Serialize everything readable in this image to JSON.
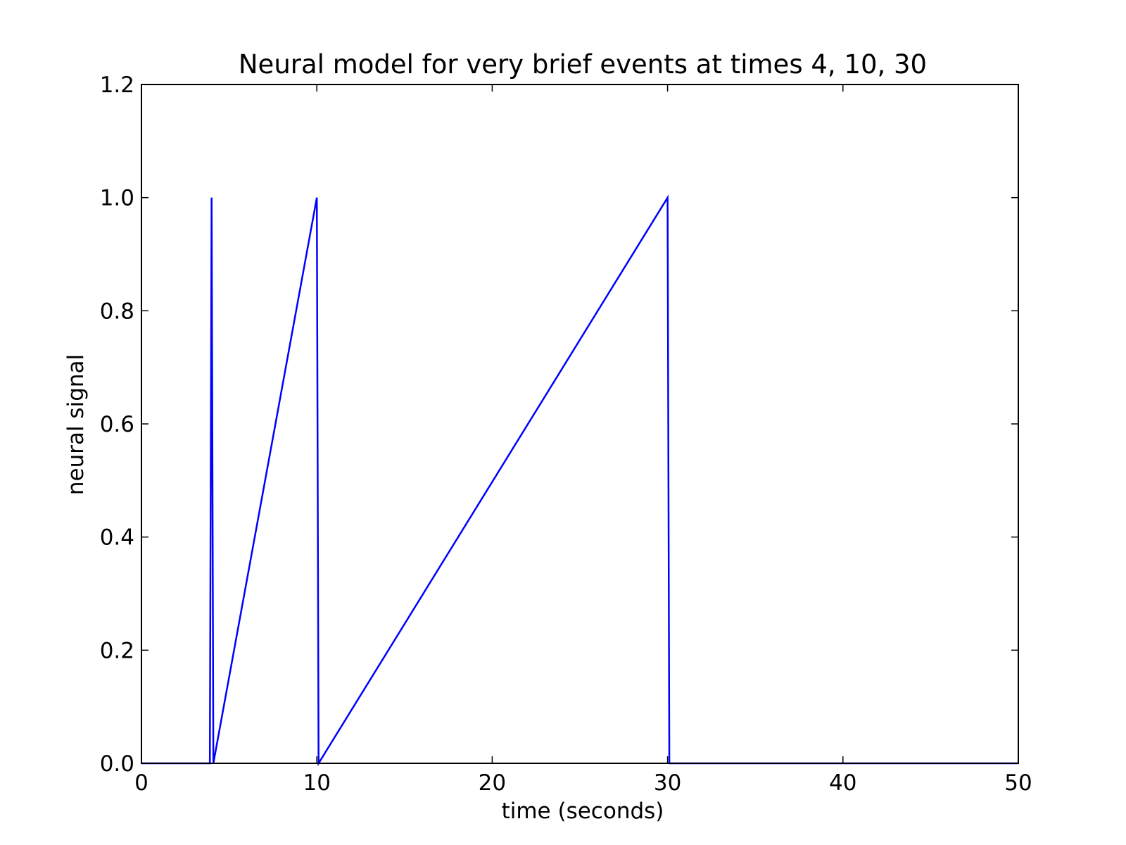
{
  "chart_data": {
    "type": "line",
    "title": "Neural model for very brief events at times 4, 10, 30",
    "xlabel": "time (seconds)",
    "ylabel": "neural signal",
    "xlim": [
      0,
      50
    ],
    "ylim": [
      0,
      1.2
    ],
    "xticks": [
      0,
      10,
      20,
      30,
      40,
      50
    ],
    "xtick_labels": [
      "0",
      "10",
      "20",
      "30",
      "40",
      "50"
    ],
    "yticks": [
      0,
      0.2,
      0.4,
      0.6,
      0.8,
      1.0,
      1.2
    ],
    "ytick_labels": [
      "0.0",
      "0.2",
      "0.4",
      "0.6",
      "0.8",
      "1.0",
      "1.2"
    ],
    "grid": false,
    "legend": "none",
    "series": [
      {
        "color": "#0000ff",
        "x": [
          0,
          3.9,
          4.0,
          4.1,
          10.0,
          10.1,
          30.0,
          30.1,
          50
        ],
        "y": [
          0,
          0,
          1,
          0,
          1,
          0,
          1,
          0,
          0
        ]
      }
    ]
  }
}
